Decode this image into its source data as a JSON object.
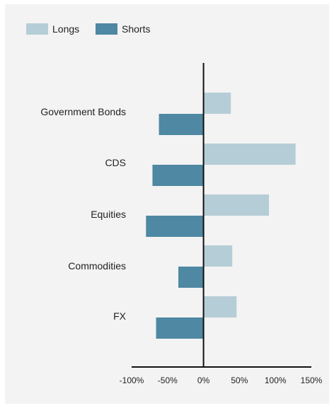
{
  "chart_data": {
    "type": "bar",
    "orientation": "horizontal",
    "categories": [
      "Government Bonds",
      "CDS",
      "Equities",
      "Commodities",
      "FX"
    ],
    "series": [
      {
        "name": "Longs",
        "values": [
          38,
          128,
          91,
          40,
          46
        ],
        "color": "#b5cdd6"
      },
      {
        "name": "Shorts",
        "values": [
          -62,
          -71,
          -80,
          -35,
          -66
        ],
        "color": "#4e88a3"
      }
    ],
    "xlim": [
      -100,
      150
    ],
    "xticks": [
      "-100%",
      "-50%",
      "0%",
      "50%",
      "100%",
      "150%"
    ],
    "xtick_values": [
      -100,
      -50,
      0,
      50,
      100,
      150
    ],
    "legend_position": "top-left",
    "grid": false
  }
}
